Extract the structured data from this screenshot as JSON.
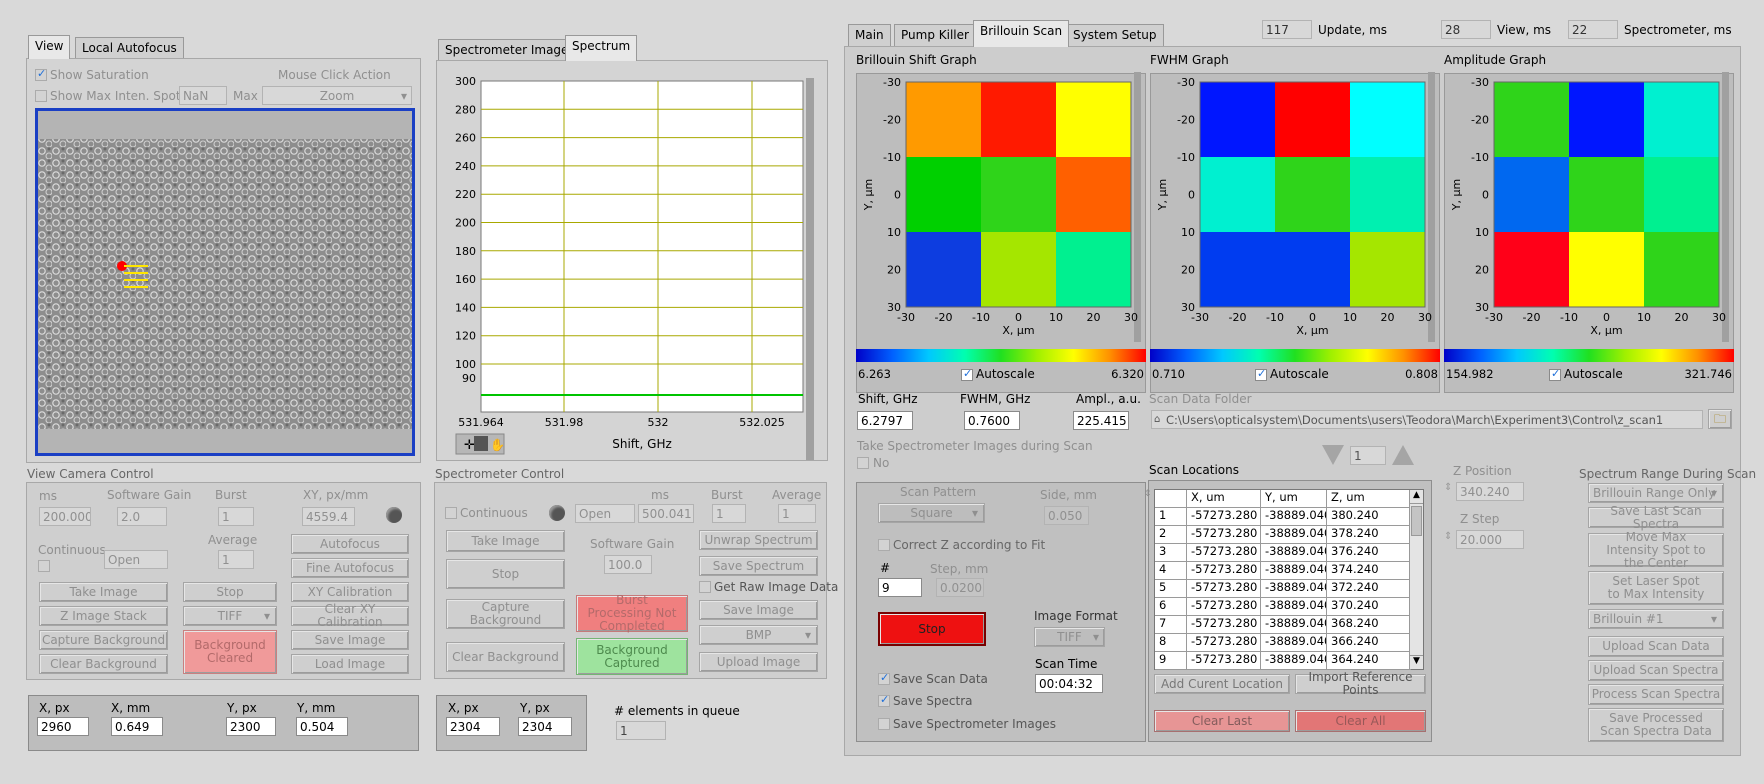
{
  "left": {
    "tabs": [
      "View",
      "Local Autofocus"
    ],
    "show_saturation": "Show Saturation",
    "show_max_inten": "Show Max Inten. Spot",
    "max_inten_value": "NaN",
    "max_label": "Max",
    "mouse_click_action": "Mouse Click Action",
    "mouse_click_value": "Zoom",
    "camera_title": "View Camera Control",
    "ms_label": "ms",
    "ms_value": "200.000",
    "gain_label": "Software Gain",
    "gain_value": "2.0",
    "burst_label": "Burst",
    "burst_value": "1",
    "average_label": "Average",
    "average_value": "1",
    "xy_label": "XY, px/mm",
    "xy_value": "4559.4",
    "continuous_label": "Continuous",
    "continuous_value": "Open",
    "buttons": {
      "autofocus": "Autofocus",
      "fine_autofocus": "Fine Autofocus",
      "take_image": "Take Image",
      "stop": "Stop",
      "xy_calibration": "XY Calibration",
      "z_image_stack": "Z Image Stack",
      "tiff": "TIFF",
      "clear_xy_calibration": "Clear XY Calibration",
      "capture_background": "Capture Background",
      "background_cleared": "Background Cleared",
      "save_image": "Save Image",
      "clear_background": "Clear Background",
      "load_image": "Load Image"
    },
    "coords": {
      "x_px_label": "X, px",
      "x_px": "2960",
      "x_mm_label": "X, mm",
      "x_mm": "0.649",
      "y_px_label": "Y, px",
      "y_px": "2300",
      "y_mm_label": "Y, mm",
      "y_mm": "0.504"
    }
  },
  "spectrometer": {
    "tabs": [
      "Spectrometer Image",
      "Spectrum"
    ],
    "plot": {
      "y_ticks": [
        "300",
        "280",
        "260",
        "240",
        "220",
        "200",
        "180",
        "160",
        "140",
        "120",
        "100",
        "90"
      ],
      "x_ticks": [
        "531.964",
        "531.98",
        "532",
        "532.025"
      ],
      "xlabel": "Shift, GHz"
    },
    "control_title": "Spectrometer Control",
    "continuous_label": "Continuous",
    "ms_label": "ms",
    "open_value": "Open",
    "ms_value": "500.041",
    "burst_label": "Burst",
    "burst_value": "1",
    "average_label": "Average",
    "average_value": "1",
    "gain_label": "Software Gain",
    "gain_value": "100.0",
    "get_raw_label": "Get Raw Image Data",
    "buttons": {
      "take_image": "Take Image",
      "unwrap_spectrum": "Unwrap Spectrum",
      "stop": "Stop",
      "save_spectrum": "Save Spectrum",
      "capture_background": "Capture Background",
      "burst_processing": "Burst Processing Not Completed",
      "save_image": "Save Image",
      "bmp": "BMP",
      "clear_background": "Clear Background",
      "background_captured": "Background Captured",
      "upload_image": "Upload Image"
    },
    "coords": {
      "x_px_label": "X, px",
      "x_px": "2304",
      "y_px_label": "Y, px",
      "y_px": "2304"
    },
    "queue_label": "# elements in queue",
    "queue_value": "1"
  },
  "right": {
    "tabs": [
      "Main",
      "Pump Killer",
      "Brillouin Scan",
      "System Setup"
    ],
    "update_value": "117",
    "update_label": "Update, ms",
    "view_value": "28",
    "view_label": "View, ms",
    "spec_value": "22",
    "spec_label": "Spectrometer, ms",
    "graphs": [
      {
        "title": "Brillouin Shift Graph",
        "min": "6.263",
        "max": "6.320",
        "autoscale": "Autoscale",
        "cells": [
          "#ff9a00",
          "#ff1a00",
          "#ffff00",
          "#00d000",
          "#2fd41a",
          "#ff6000",
          "#0d3de0",
          "#a5e600",
          "#00f090"
        ]
      },
      {
        "title": "FWHM Graph",
        "min": "0.710",
        "max": "0.808",
        "autoscale": "Autoscale",
        "cells": [
          "#0016ff",
          "#ff0000",
          "#00ffff",
          "#00f0d0",
          "#2fd41a",
          "#00f0b0",
          "#003cf0",
          "#003cf0",
          "#a5e600"
        ]
      },
      {
        "title": "Amplitude Graph",
        "min": "154.982",
        "max": "321.746",
        "autoscale": "Autoscale",
        "cells": [
          "#2fd41a",
          "#0016ff",
          "#00f0d0",
          "#0068f0",
          "#2fd41a",
          "#00f090",
          "#ff0018",
          "#ffff00",
          "#2fd41a"
        ]
      }
    ],
    "axis": {
      "xlabel": "X, µm",
      "ylabel": "Y, µm",
      "x_ticks": [
        "-30",
        "-20",
        "-10",
        "0",
        "10",
        "20",
        "30"
      ],
      "y_ticks": [
        "-30",
        "-20",
        "-10",
        "0",
        "10",
        "20",
        "30"
      ]
    },
    "shift_label": "Shift, GHz",
    "shift_value": "6.2797",
    "fwhm_label": "FWHM, GHz",
    "fwhm_value": "0.7600",
    "ampl_label": "Ampl., a.u.",
    "ampl_value": "225.415",
    "folder_label": "Scan Data Folder",
    "folder_value": "C:\\Users\\opticalsystem\\Documents\\users\\Teodora\\March\\Experiment3\\Control\\z_scan1",
    "take_spec_label": "Take Spectrometer Images during Scan",
    "take_spec_value": "No",
    "scan_pattern_label": "Scan Pattern",
    "scan_pattern_value": "Square",
    "side_label": "Side, mm",
    "side_value": "0.050",
    "correct_z_label": "Correct Z according to Fit",
    "num_label": "#",
    "num_value": "9",
    "step_label": "Step, mm",
    "step_value": "0.0200",
    "stop_button": "Stop",
    "image_format_label": "Image Format",
    "image_format_value": "TIFF",
    "save_scan_data": "Save Scan Data",
    "save_spectra": "Save Spectra",
    "save_spec_images": "Save Spectrometer Images",
    "scan_time_label": "Scan Time",
    "scan_time_value": "00:04:32",
    "locations_label": "Scan Locations",
    "nav_value": "1",
    "table": {
      "headers": [
        "X, um",
        "Y, um",
        "Z, um"
      ],
      "rows": [
        [
          "1",
          "-57273.280",
          "-38889.040",
          "380.240"
        ],
        [
          "2",
          "-57273.280",
          "-38889.040",
          "378.240"
        ],
        [
          "3",
          "-57273.280",
          "-38889.040",
          "376.240"
        ],
        [
          "4",
          "-57273.280",
          "-38889.040",
          "374.240"
        ],
        [
          "5",
          "-57273.280",
          "-38889.040",
          "372.240"
        ],
        [
          "6",
          "-57273.280",
          "-38889.040",
          "370.240"
        ],
        [
          "7",
          "-57273.280",
          "-38889.040",
          "368.240"
        ],
        [
          "8",
          "-57273.280",
          "-38889.040",
          "366.240"
        ],
        [
          "9",
          "-57273.280",
          "-38889.040",
          "364.240"
        ]
      ]
    },
    "add_location": "Add Curent Location",
    "import_ref": "Import Reference Points",
    "clear_last": "Clear Last",
    "clear_all": "Clear All",
    "z_position_label": "Z Position",
    "z_position_value": "340.240",
    "z_step_label": "Z Step",
    "z_step_value": "20.000",
    "spectrum_range_label": "Spectrum Range During Scan",
    "spectrum_range_value": "Brillouin Range Only",
    "buttons": {
      "save_last_scan": "Save Last Scan Spectra",
      "move_max": "Move Max Intensity Spot to the Center",
      "set_laser": "Set Laser Spot to Max Intensity",
      "brillouin_select": "Brillouin #1",
      "upload_scan_data": "Upload Scan Data",
      "upload_scan_spectra": "Upload Scan Spectra",
      "process_scan_spectra": "Process Scan Spectra",
      "save_processed": "Save Processed Scan Spectra Data"
    }
  }
}
